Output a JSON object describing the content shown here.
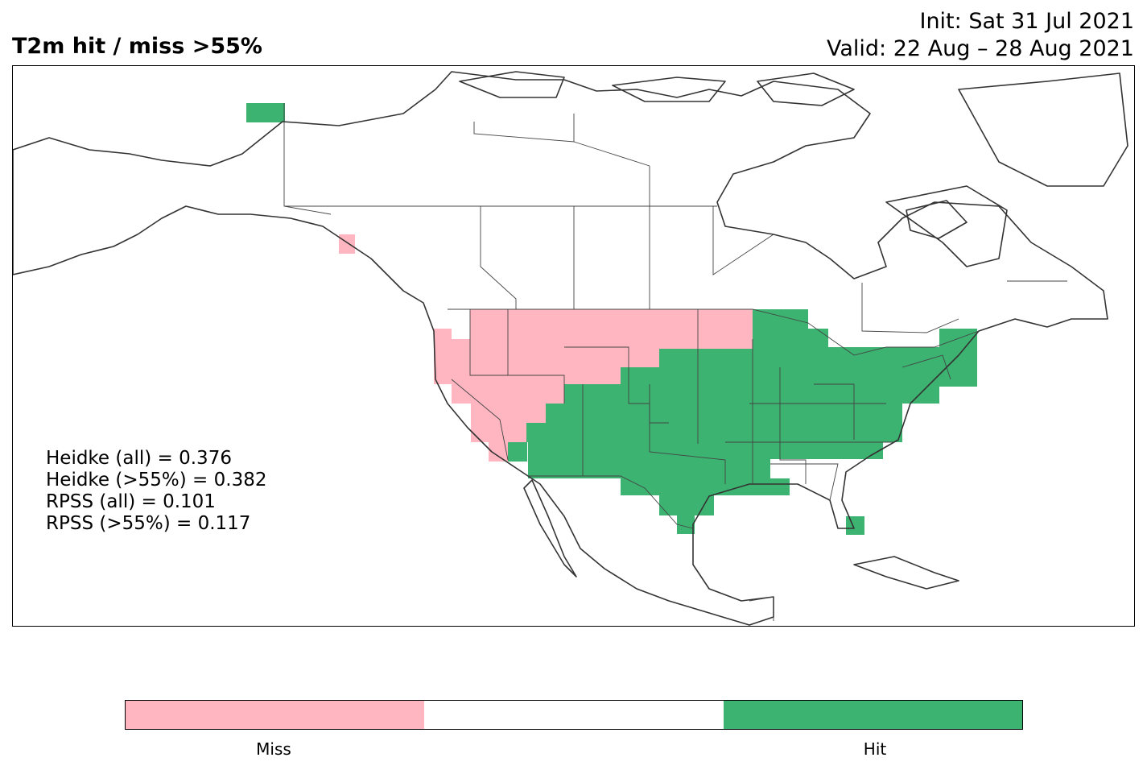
{
  "header": {
    "title": "T2m hit / miss  >55%",
    "init": "Init: Sat 31 Jul 2021",
    "valid": "Valid: 22 Aug – 28 Aug 2021"
  },
  "scores": [
    "Heidke (all) = 0.376",
    "Heidke (>55%) = 0.382",
    "RPSS (all) = 0.101",
    "RPSS (>55%) = 0.117"
  ],
  "colors": {
    "miss": "#ffb6c1",
    "neutral": "#ffffff",
    "hit": "#3cb371",
    "coast": "#333333",
    "border": "#444444"
  },
  "colorbar": {
    "segments": [
      "miss",
      "neutral",
      "hit"
    ],
    "labels": [
      "Miss",
      "Hit"
    ]
  }
}
